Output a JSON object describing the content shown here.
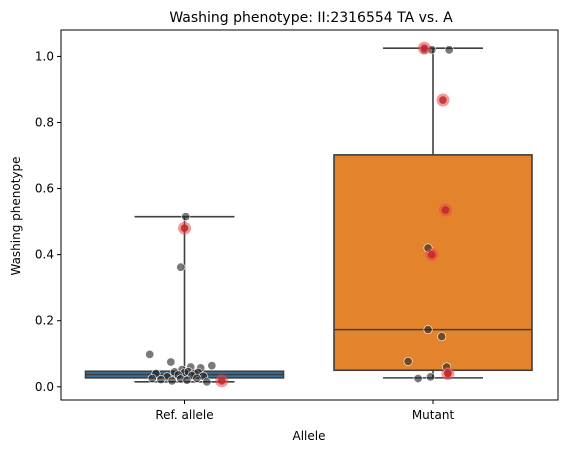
{
  "chart_data": {
    "type": "box",
    "title": "Washing phenotype: II:2316554 TA vs. A",
    "xlabel": "Allele",
    "ylabel": "Washing phenotype",
    "ylim": [
      -0.04,
      1.08
    ],
    "yticks": [
      "0.0",
      "0.2",
      "0.4",
      "0.6",
      "0.8",
      "1.0"
    ],
    "ytick_values": [
      0.0,
      0.2,
      0.4,
      0.6,
      0.8,
      1.0
    ],
    "categories": [
      "Ref. allele",
      "Mutant"
    ],
    "colors": {
      "box_fill": [
        "#3a6f9a",
        "#e3832c"
      ],
      "box_edge": "#3f3f3f",
      "point": "#222222",
      "highlight": "#e8474a"
    },
    "boxes": [
      {
        "category": "Ref. allele",
        "whisker_low": 0.015,
        "q1": 0.027,
        "median": 0.037,
        "q3": 0.047,
        "whisker_high": 0.515
      },
      {
        "category": "Mutant",
        "whisker_low": 0.027,
        "q1": 0.05,
        "median": 0.173,
        "q3": 0.702,
        "whisker_high": 1.025
      }
    ],
    "points": [
      {
        "category": "Ref. allele",
        "offset": -0.28,
        "y": 0.098,
        "highlight": false
      },
      {
        "category": "Ref. allele",
        "offset": -0.11,
        "y": 0.075,
        "highlight": false
      },
      {
        "category": "Ref. allele",
        "offset": 0.05,
        "y": 0.06,
        "highlight": false
      },
      {
        "category": "Ref. allele",
        "offset": 0.13,
        "y": 0.057,
        "highlight": false
      },
      {
        "category": "Ref. allele",
        "offset": 0.22,
        "y": 0.064,
        "highlight": false
      },
      {
        "category": "Ref. allele",
        "offset": -0.02,
        "y": 0.052,
        "highlight": false
      },
      {
        "category": "Ref. allele",
        "offset": -0.23,
        "y": 0.04,
        "highlight": false
      },
      {
        "category": "Ref. allele",
        "offset": -0.08,
        "y": 0.045,
        "highlight": false
      },
      {
        "category": "Ref. allele",
        "offset": 0.0,
        "y": 0.043,
        "highlight": false
      },
      {
        "category": "Ref. allele",
        "offset": 0.03,
        "y": 0.046,
        "highlight": false
      },
      {
        "category": "Ref. allele",
        "offset": 0.08,
        "y": 0.04,
        "highlight": false
      },
      {
        "category": "Ref. allele",
        "offset": 0.11,
        "y": 0.044,
        "highlight": false
      },
      {
        "category": "Ref. allele",
        "offset": -0.05,
        "y": 0.036,
        "highlight": false
      },
      {
        "category": "Ref. allele",
        "offset": 0.06,
        "y": 0.034,
        "highlight": false
      },
      {
        "category": "Ref. allele",
        "offset": -0.14,
        "y": 0.03,
        "highlight": false
      },
      {
        "category": "Ref. allele",
        "offset": 0.15,
        "y": 0.032,
        "highlight": false
      },
      {
        "category": "Ref. allele",
        "offset": -0.26,
        "y": 0.025,
        "highlight": false
      },
      {
        "category": "Ref. allele",
        "offset": -0.19,
        "y": 0.022,
        "highlight": false
      },
      {
        "category": "Ref. allele",
        "offset": -0.1,
        "y": 0.018,
        "highlight": false
      },
      {
        "category": "Ref. allele",
        "offset": -0.03,
        "y": 0.024,
        "highlight": false
      },
      {
        "category": "Ref. allele",
        "offset": 0.02,
        "y": 0.02,
        "highlight": false
      },
      {
        "category": "Ref. allele",
        "offset": 0.1,
        "y": 0.026,
        "highlight": false
      },
      {
        "category": "Ref. allele",
        "offset": 0.18,
        "y": 0.015,
        "highlight": false
      },
      {
        "category": "Ref. allele",
        "offset": -0.03,
        "y": 0.362,
        "highlight": false
      },
      {
        "category": "Ref. allele",
        "offset": 0.01,
        "y": 0.515,
        "highlight": false
      },
      {
        "category": "Ref. allele",
        "offset": 0.0,
        "y": 0.48,
        "highlight": true
      },
      {
        "category": "Ref. allele",
        "offset": 0.3,
        "y": 0.018,
        "highlight": true
      },
      {
        "category": "Mutant",
        "offset": -0.07,
        "y": 1.02,
        "highlight": false
      },
      {
        "category": "Mutant",
        "offset": -0.01,
        "y": 1.02,
        "highlight": false
      },
      {
        "category": "Mutant",
        "offset": 0.13,
        "y": 1.02,
        "highlight": false
      },
      {
        "category": "Mutant",
        "offset": -0.07,
        "y": 1.025,
        "highlight": true
      },
      {
        "category": "Mutant",
        "offset": 0.08,
        "y": 0.868,
        "highlight": true
      },
      {
        "category": "Mutant",
        "offset": 0.1,
        "y": 0.535,
        "highlight": true
      },
      {
        "category": "Mutant",
        "offset": -0.04,
        "y": 0.42,
        "highlight": false
      },
      {
        "category": "Mutant",
        "offset": -0.01,
        "y": 0.4,
        "highlight": true
      },
      {
        "category": "Mutant",
        "offset": -0.04,
        "y": 0.173,
        "highlight": false
      },
      {
        "category": "Mutant",
        "offset": 0.07,
        "y": 0.152,
        "highlight": false
      },
      {
        "category": "Mutant",
        "offset": -0.2,
        "y": 0.077,
        "highlight": false
      },
      {
        "category": "Mutant",
        "offset": 0.11,
        "y": 0.06,
        "highlight": false
      },
      {
        "category": "Mutant",
        "offset": 0.12,
        "y": 0.042,
        "highlight": false
      },
      {
        "category": "Mutant",
        "offset": -0.12,
        "y": 0.025,
        "highlight": false
      },
      {
        "category": "Mutant",
        "offset": -0.02,
        "y": 0.03,
        "highlight": false
      },
      {
        "category": "Mutant",
        "offset": 0.12,
        "y": 0.04,
        "highlight": true
      }
    ]
  }
}
